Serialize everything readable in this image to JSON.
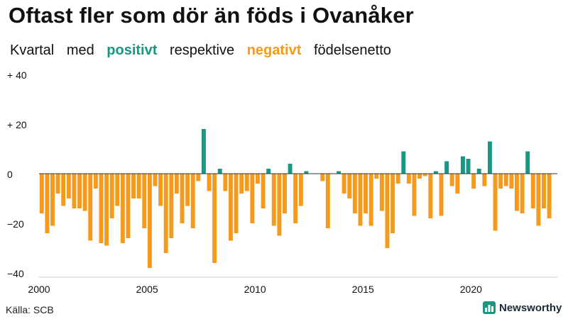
{
  "header": {
    "title": "Oftast fler som dör än föds i Ovanåker",
    "subtitle_parts": [
      "Kvartal",
      "med",
      "positivt",
      "respektive",
      "negativt",
      "födelsenetto"
    ]
  },
  "colors": {
    "positive": "#1a9783",
    "negative": "#f59a1b",
    "text": "#111111",
    "zero_line": "#333333"
  },
  "footer": {
    "source": "Källa: SCB",
    "brand": "Newsworthy",
    "brand_icon": "bar-chart-icon"
  },
  "chart_data": {
    "type": "bar",
    "title": "Oftast fler som dör än föds i Ovanåker",
    "subtitle": "Kvartal med positivt respektive negativt födelsenetto",
    "xlabel": "",
    "ylabel": "",
    "ylim": [
      -40,
      40
    ],
    "xlim": [
      2000,
      2024
    ],
    "y_ticks": [
      40,
      20,
      0,
      -20,
      -40
    ],
    "y_tick_labels": [
      "+ 40",
      "+ 20",
      "0",
      "−20",
      "−40"
    ],
    "x_ticks": [
      2000,
      2005,
      2010,
      2015,
      2020
    ],
    "x_tick_labels": [
      "2000",
      "2005",
      "2010",
      "2015",
      "2020"
    ],
    "start_year": 2000,
    "periods_per_year": 4,
    "grid": false,
    "values": [
      -16,
      -24,
      -21,
      -8,
      -13,
      -10,
      -14,
      -14,
      -15,
      -27,
      -6,
      -28,
      -29,
      -18,
      -13,
      -28,
      -26,
      -10,
      -10,
      -22,
      -38,
      -5,
      -13,
      -32,
      -26,
      -8,
      -20,
      -13,
      -22,
      -3,
      18,
      -7,
      -36,
      2,
      -7,
      -27,
      -24,
      -8,
      -7,
      -20,
      -4,
      -14,
      2,
      -21,
      -25,
      -16,
      4,
      -20,
      -13,
      1,
      0,
      0,
      -3,
      -22,
      0,
      1,
      -8,
      -10,
      -16,
      -21,
      -16,
      -21,
      -2,
      -15,
      -30,
      -24,
      -4,
      9,
      -4,
      -17,
      -2,
      -1,
      -18,
      1,
      -17,
      5,
      -5,
      -8,
      7,
      6,
      -6,
      2,
      -5,
      13,
      -23,
      -6,
      -5,
      -6,
      -15,
      -16,
      9,
      -14,
      -21,
      -14,
      -18
    ]
  }
}
